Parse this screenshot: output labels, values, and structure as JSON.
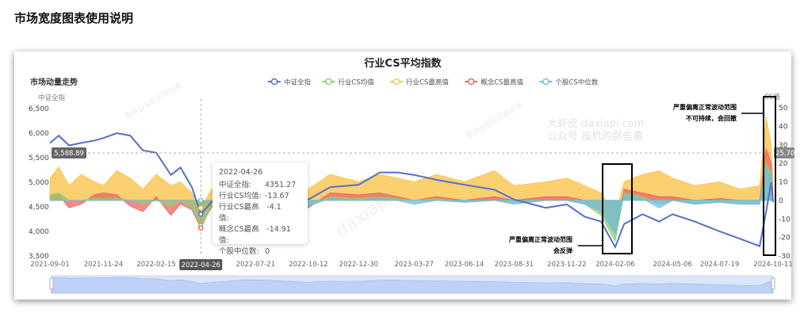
{
  "page": {
    "title": "市场宽度图表使用说明"
  },
  "chart_data": {
    "type": "line",
    "title": "行业CS平均指数",
    "subtitle": "市场动量走势",
    "y_left": {
      "label": "中证全指",
      "ticks": [
        "6,500",
        "6,000",
        "5,500",
        "5,000",
        "4,500",
        "4,000",
        "3,500"
      ],
      "range": [
        3500,
        6500
      ]
    },
    "y_right": {
      "label": "CS值",
      "ticks": [
        "50",
        "40",
        "30",
        "20",
        "10",
        "0",
        "-10",
        "-20",
        "-30"
      ],
      "range": [
        -30,
        50
      ]
    },
    "x_ticks": [
      "2021-09-01",
      "2021-11-24",
      "2022-02-15",
      "2022-07-21",
      "2022-10-12",
      "2022-12-30",
      "2023-03-27",
      "2023-06-14",
      "2023-08-31",
      "2023-11-22",
      "2024-02-06",
      "2024-05-06",
      "2024-07-19",
      "2024-10-11"
    ],
    "grid": false,
    "legend_position": "top",
    "x": [
      "2021-09-01",
      "2021-09-15",
      "2021-10-01",
      "2021-10-20",
      "2021-11-10",
      "2021-11-24",
      "2021-12-15",
      "2022-01-05",
      "2022-01-25",
      "2022-02-15",
      "2022-03-10",
      "2022-03-25",
      "2022-04-12",
      "2022-04-26",
      "2022-05-20",
      "2022-06-15",
      "2022-07-05",
      "2022-08-10",
      "2022-09-10",
      "2022-10-12",
      "2022-11-15",
      "2022-12-30",
      "2023-02-01",
      "2023-03-01",
      "2023-03-27",
      "2023-05-01",
      "2023-06-14",
      "2023-07-31",
      "2023-08-31",
      "2023-10-20",
      "2023-11-22",
      "2023-12-20",
      "2024-01-15",
      "2024-02-06",
      "2024-02-20",
      "2024-03-20",
      "2024-04-15",
      "2024-05-06",
      "2024-06-10",
      "2024-07-19",
      "2024-08-20",
      "2024-09-20",
      "2024-09-30",
      "2024-10-08",
      "2024-10-11"
    ],
    "series": [
      {
        "name": "中证全指",
        "axis": "left",
        "type": "line",
        "color": "#5470c6",
        "values": [
          5800,
          5950,
          5750,
          5800,
          5850,
          5900,
          6000,
          5950,
          5650,
          5600,
          5150,
          5300,
          4900,
          4351.27,
          4700,
          5100,
          5350,
          5200,
          4950,
          4650,
          4900,
          4950,
          5200,
          5200,
          5150,
          5050,
          4950,
          4850,
          4650,
          4480,
          4550,
          4300,
          4200,
          3680,
          4150,
          4350,
          4200,
          4350,
          4200,
          4000,
          3850,
          3700,
          4400,
          5000,
          4600
        ]
      },
      {
        "name": "行业CS均值",
        "axis": "right",
        "type": "area",
        "color": "#91cc75",
        "values": [
          3,
          4,
          0,
          0,
          1,
          1,
          1,
          0,
          -2,
          0,
          -3,
          0,
          -4,
          -13.67,
          0,
          2,
          1,
          0,
          -1,
          -3,
          2,
          1,
          2,
          1,
          0,
          1,
          -1,
          0,
          -1,
          0,
          0,
          -2,
          -8,
          -22,
          4,
          2,
          -2,
          0,
          -2,
          -1,
          -2,
          -2,
          20,
          15,
          0
        ]
      },
      {
        "name": "行业CS最高值",
        "axis": "right",
        "type": "area",
        "color": "#fac858",
        "values": [
          12,
          18,
          8,
          14,
          10,
          8,
          16,
          12,
          6,
          14,
          8,
          10,
          4,
          -4.1,
          10,
          16,
          12,
          10,
          8,
          6,
          14,
          10,
          14,
          12,
          10,
          14,
          10,
          16,
          8,
          10,
          12,
          8,
          4,
          -8,
          10,
          14,
          16,
          12,
          8,
          10,
          6,
          8,
          45,
          30,
          6
        ]
      },
      {
        "name": "概念CS最高值",
        "axis": "right",
        "type": "area",
        "color": "#ee6666",
        "values": [
          2,
          3,
          -4,
          -2,
          3,
          4,
          3,
          -3,
          -6,
          2,
          -8,
          -2,
          -5,
          -14.91,
          2,
          4,
          3,
          2,
          0,
          -4,
          4,
          3,
          4,
          2,
          0,
          2,
          0,
          2,
          0,
          2,
          2,
          0,
          -6,
          -18,
          6,
          4,
          2,
          2,
          0,
          1,
          0,
          0,
          28,
          20,
          2
        ]
      },
      {
        "name": "个股CS中位数",
        "axis": "right",
        "type": "area",
        "color": "#73c0de",
        "values": [
          0,
          0,
          0,
          0,
          0,
          0,
          0,
          0,
          0,
          0,
          0,
          0,
          0,
          0,
          0,
          0,
          0,
          0,
          -1,
          -3,
          1,
          0,
          1,
          0,
          -2,
          0,
          -1,
          0,
          -2,
          0,
          0,
          -2,
          -6,
          -18,
          3,
          1,
          -4,
          0,
          -2,
          -1,
          -2,
          -2,
          18,
          12,
          -1
        ]
      }
    ],
    "crosshair": {
      "date": "2022-04-26",
      "left_value": "5,588.89",
      "right_value": "25.70"
    },
    "tooltip": {
      "date": "2022-04-26",
      "rows": [
        {
          "label": "中证全指:",
          "value": "4351.27"
        },
        {
          "label": "行业CS均值:",
          "value": "-13.67"
        },
        {
          "label": "行业CS最高值:",
          "value": "-4.1"
        },
        {
          "label": "概念CS最高值:",
          "value": "-14.91"
        },
        {
          "label": "个股中位数:",
          "value": "0"
        }
      ]
    },
    "annotations": [
      {
        "lines": [
          "严重偏离正常波动范围",
          "会反弹"
        ],
        "period": "2024-02-06"
      },
      {
        "lines": [
          "严重偏离正常波动范围",
          "不可持续，会回撤"
        ],
        "period": "2024-10-11"
      }
    ]
  },
  "watermarks": [
    "雪球@投机的那些事",
    "大虾皮 daxiapi.com",
    "公众号 投机的那些事",
    "daxiapi.com"
  ]
}
